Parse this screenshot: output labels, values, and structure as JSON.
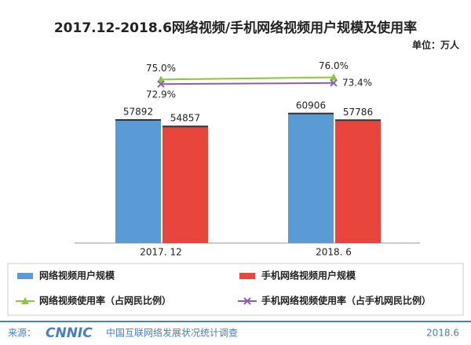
{
  "chart_data": {
    "type": "bar-line",
    "title": "2017.12-2018.6网络视频/手机网络视频用户规模及使用率",
    "unit": "单位：万人",
    "categories": [
      "2017. 12",
      "2018. 6"
    ],
    "ylim": [
      0,
      80000
    ],
    "y2lim": [
      0,
      78
    ],
    "series": [
      {
        "name": "网络视频用户规模",
        "color": "#5b9bd5",
        "kind": "bar",
        "values": [
          57892,
          60906
        ]
      },
      {
        "name": "手机网络视频用户规模",
        "color": "#e8453c",
        "kind": "bar",
        "values": [
          54857,
          57786
        ]
      },
      {
        "name": "网络视频使用率（占网民比例）",
        "color": "#8dc63f",
        "kind": "line",
        "marker": "triangle",
        "axis": "y2",
        "values": [
          75.0,
          76.0
        ],
        "value_labels": [
          "75.0%",
          "76.0%"
        ]
      },
      {
        "name": "手机网络视频使用率（占手机网民比例）",
        "color": "#8a5fb3",
        "kind": "line",
        "marker": "x",
        "axis": "y2",
        "values": [
          72.9,
          73.4
        ],
        "value_labels": [
          "72.9%",
          "73.4%"
        ]
      }
    ],
    "source_label": "来源：",
    "source_logo": "CNNIC",
    "source_name": "中国互联网络发展状况统计调查",
    "date": "2018.6"
  }
}
